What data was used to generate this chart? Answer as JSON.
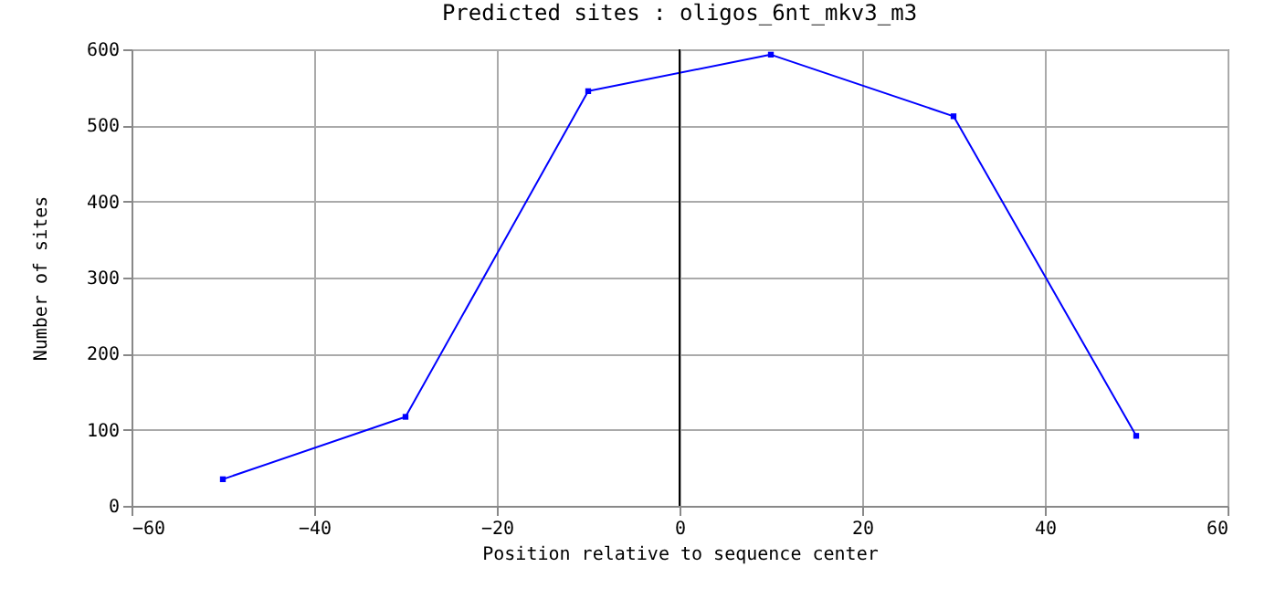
{
  "chart_data": {
    "type": "line",
    "title": "Predicted sites : oligos_6nt_mkv3_m3",
    "xlabel": "Position relative to sequence center",
    "ylabel": "Number of sites",
    "x": [
      -50,
      -30,
      -10,
      10,
      30,
      50
    ],
    "series": [
      {
        "color": "#0000ff",
        "values": [
          35,
          117,
          545,
          593,
          512,
          92
        ]
      }
    ],
    "xlim": [
      -60,
      60
    ],
    "xticks": [
      -60,
      -40,
      -20,
      0,
      20,
      40,
      60
    ],
    "ylim": [
      0,
      600
    ],
    "yticks": [
      0,
      100,
      200,
      300,
      400,
      500,
      600
    ],
    "ref_lines": [
      {
        "axis": "x",
        "value": 0,
        "color": "#000000"
      }
    ],
    "grid": true,
    "marker": "square",
    "line_style": "solid"
  }
}
